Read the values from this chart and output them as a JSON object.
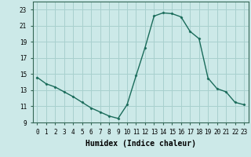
{
  "x": [
    0,
    1,
    2,
    3,
    4,
    5,
    6,
    7,
    8,
    9,
    10,
    11,
    12,
    13,
    14,
    15,
    16,
    17,
    18,
    19,
    20,
    21,
    22,
    23
  ],
  "y": [
    14.6,
    13.8,
    13.4,
    12.8,
    12.2,
    11.5,
    10.8,
    10.3,
    9.8,
    9.5,
    11.2,
    14.8,
    18.3,
    22.2,
    22.6,
    22.5,
    22.1,
    20.3,
    19.4,
    14.5,
    13.2,
    12.8,
    11.5,
    11.2
  ],
  "line_color": "#1a6b5a",
  "marker": "D",
  "marker_size": 1.5,
  "bg_color": "#cce9e8",
  "grid_color": "#a8d0ce",
  "xlabel": "Humidex (Indice chaleur)",
  "ylim": [
    9,
    24
  ],
  "xlim": [
    -0.5,
    23.5
  ],
  "yticks": [
    9,
    11,
    13,
    15,
    17,
    19,
    21,
    23
  ],
  "xticks": [
    0,
    1,
    2,
    3,
    4,
    5,
    6,
    7,
    8,
    9,
    10,
    11,
    12,
    13,
    14,
    15,
    16,
    17,
    18,
    19,
    20,
    21,
    22,
    23
  ],
  "tick_fontsize": 5.5,
  "xlabel_fontsize": 7.0,
  "linewidth": 1.0
}
